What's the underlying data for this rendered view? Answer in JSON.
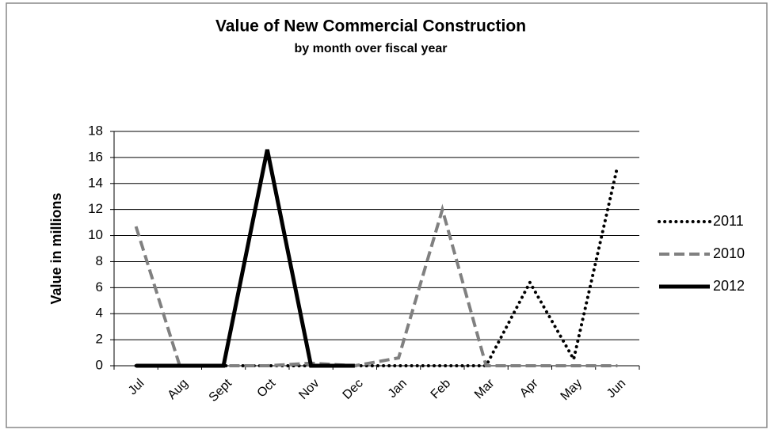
{
  "chart_data": {
    "type": "line",
    "title": "Value of New Commercial Construction",
    "subtitle": "by month over fiscal year",
    "y_label": "Value in millions",
    "categories": [
      "Jul",
      "Aug",
      "Sept",
      "Oct",
      "Nov",
      "Dec",
      "Jan",
      "Feb",
      "Mar",
      "Apr",
      "May",
      "Jun"
    ],
    "series": [
      {
        "name": "2011",
        "color": "#000000",
        "dash": "dotted",
        "values": [
          0,
          0,
          0,
          0,
          0,
          0,
          0,
          0,
          0,
          6.4,
          0.5,
          15.3
        ]
      },
      {
        "name": "2010",
        "color": "#808080",
        "dash": "dashed",
        "values": [
          10.7,
          0,
          0,
          0,
          0.2,
          0,
          0.6,
          12,
          0,
          0,
          0,
          0
        ]
      },
      {
        "name": "2012",
        "color": "#000000",
        "dash": "solid",
        "values": [
          0,
          0,
          0,
          16.6,
          0,
          0,
          null,
          null,
          null,
          null,
          null,
          null
        ]
      }
    ],
    "ylim": [
      0,
      18
    ],
    "yticks": [
      0,
      2,
      4,
      6,
      8,
      10,
      12,
      14,
      16,
      18
    ],
    "grid": true,
    "legend": "right"
  }
}
